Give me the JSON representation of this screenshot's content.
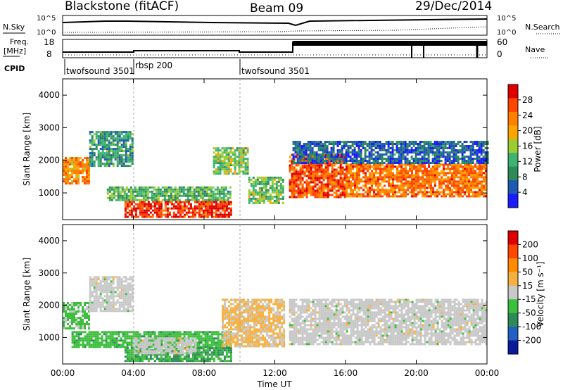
{
  "header": {
    "station": "Blackstone (fitACF)",
    "beam": "Beam 09",
    "date": "29/Dec/2014"
  },
  "panels": {
    "nsky": {
      "left_label": "N.Sky",
      "right_label": "N.Search",
      "ticks": [
        "10^5",
        "10^0"
      ]
    },
    "freq": {
      "left_label_line1": "Freq.",
      "left_label_line2": "[MHz]",
      "left_ticks": [
        "18",
        "8"
      ],
      "right_label": "Nave",
      "right_ticks": [
        "60",
        "0"
      ]
    },
    "cpid": {
      "left_label": "CPID",
      "segments": [
        {
          "label": "twofsound 3501",
          "start": 0,
          "end": 3.9
        },
        {
          "label": "rbsp 200",
          "start": 3.9,
          "end": 9.9
        },
        {
          "label": "twofsound 3501",
          "start": 9.9,
          "end": 24
        }
      ]
    }
  },
  "x_axis": {
    "label": "Time UT",
    "ticks": [
      "00:00",
      "04:00",
      "08:00",
      "12:00",
      "16:00",
      "20:00",
      "00:00"
    ]
  },
  "chart_data": [
    {
      "type": "heatmap",
      "title": "",
      "xlabel": "Time UT",
      "ylabel": "Slant Range [km]",
      "xlim": [
        0,
        24
      ],
      "ylim": [
        180,
        4500
      ],
      "yticks": [
        "1000",
        "2000",
        "3000",
        "4000"
      ],
      "colorbar": {
        "label": "Power [dB]",
        "ticks": [
          "4",
          "8",
          "12",
          "16",
          "20",
          "24",
          "28"
        ],
        "range": [
          0,
          32
        ],
        "colors": [
          "#1b1bff",
          "#1e5ab4",
          "#2e8b57",
          "#3cb371",
          "#9acd32",
          "#ffa500",
          "#ff7f00",
          "#ff4500",
          "#e00000"
        ]
      },
      "bands": [
        {
          "t0": 0,
          "t1": 1.5,
          "r0": 1300,
          "r1": 2100,
          "value": 22
        },
        {
          "t0": 1.5,
          "t1": 4,
          "r0": 1800,
          "r1": 2900,
          "value": 10
        },
        {
          "t0": 2.5,
          "t1": 9.5,
          "r0": 750,
          "r1": 1200,
          "value": 12
        },
        {
          "t0": 3.5,
          "t1": 9.5,
          "r0": 250,
          "r1": 750,
          "value": 28
        },
        {
          "t0": 8.5,
          "t1": 10.5,
          "r0": 1600,
          "r1": 2400,
          "value": 15
        },
        {
          "t0": 10.5,
          "t1": 12.5,
          "r0": 700,
          "r1": 1500,
          "value": 14
        },
        {
          "t0": 12.8,
          "t1": 16,
          "r0": 900,
          "r1": 2200,
          "value": 26
        },
        {
          "t0": 16,
          "t1": 24,
          "r0": 900,
          "r1": 1900,
          "value": 24
        },
        {
          "t0": 13,
          "t1": 24,
          "r0": 1900,
          "r1": 2600,
          "value": 6
        }
      ]
    },
    {
      "type": "heatmap",
      "title": "",
      "xlabel": "Time UT",
      "ylabel": "Slant Range [km]",
      "xlim": [
        0,
        24
      ],
      "ylim": [
        180,
        4500
      ],
      "yticks": [
        "1000",
        "2000",
        "3000",
        "4000"
      ],
      "colorbar": {
        "label": "Velocity [m s⁻¹]",
        "ticks": [
          "200",
          "100",
          "50",
          "15",
          "-15",
          "-50",
          "-100",
          "-200"
        ],
        "range": [
          -250,
          250
        ],
        "colors": [
          "#0a1a9a",
          "#2060c0",
          "#2e8b57",
          "#3cbf3c",
          "#c8c8c8",
          "#f5b041",
          "#ff8c00",
          "#ff4500",
          "#e00000"
        ]
      },
      "bands": [
        {
          "t0": 0,
          "t1": 1.5,
          "r0": 1300,
          "r1": 2100,
          "value": -40
        },
        {
          "t0": 1.5,
          "t1": 4,
          "r0": 1800,
          "r1": 2900,
          "value": 0
        },
        {
          "t0": 0.5,
          "t1": 9.5,
          "r0": 700,
          "r1": 1200,
          "value": -60
        },
        {
          "t0": 3.5,
          "t1": 9.5,
          "r0": 250,
          "r1": 700,
          "value": -80
        },
        {
          "t0": 4,
          "t1": 7.5,
          "r0": 500,
          "r1": 1000,
          "value": 0
        },
        {
          "t0": 9,
          "t1": 12.5,
          "r0": 700,
          "r1": 2200,
          "value": 40
        },
        {
          "t0": 12.8,
          "t1": 24,
          "r0": 800,
          "r1": 2200,
          "value": 0
        }
      ]
    }
  ]
}
